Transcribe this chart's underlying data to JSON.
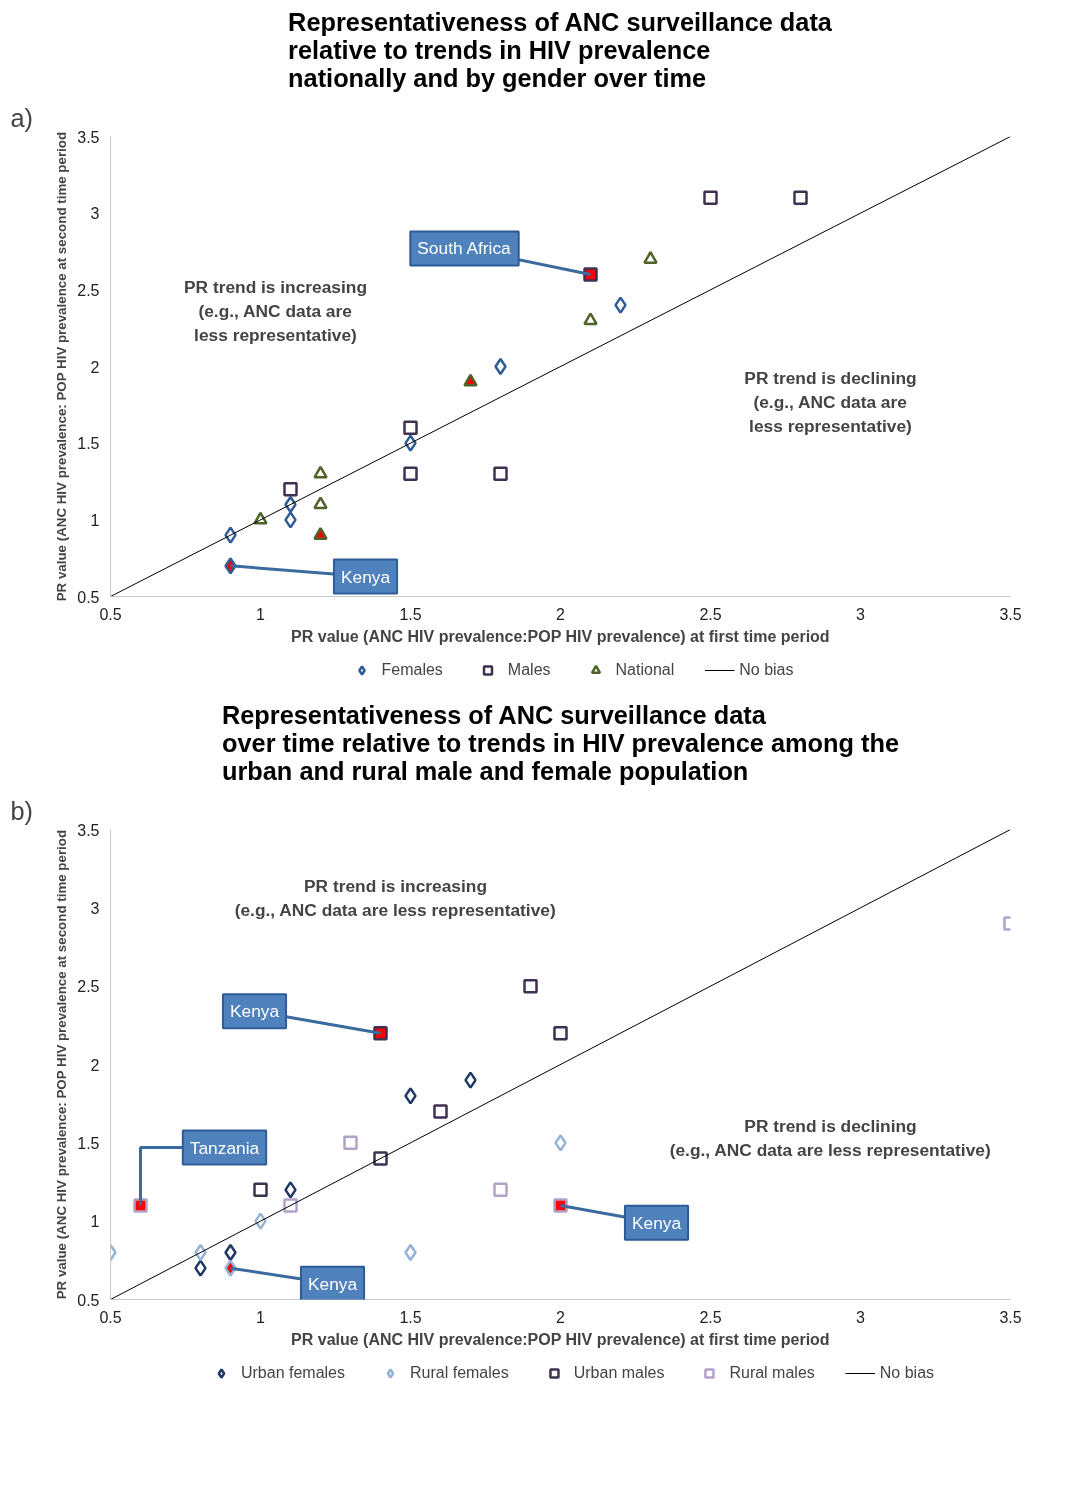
{
  "chart_data": [
    {
      "type": "scatter",
      "title": "Representativeness of ANC surveillance data\nrelative to trends in HIV prevalence\nnationally and by gender over time",
      "xlabel": "PR value (ANC HIV prevalence:POP HIV prevalence) at first time period",
      "ylabel": "PR value (ANC HIV prevalence: POP HIV prevalence at second time period",
      "xlim": [
        0.5,
        3.5
      ],
      "ylim": [
        0.5,
        3.5
      ],
      "xticks": [
        0.5,
        1,
        1.5,
        2,
        2.5,
        3,
        3.5
      ],
      "yticks": [
        0.5,
        1,
        1.5,
        2,
        2.5,
        3,
        3.5
      ],
      "grid": false,
      "legend": "bottom",
      "series": [
        {
          "name": "Females",
          "marker": "diamond",
          "color": "#2f5b96",
          "x": [
            0.9,
            1.1,
            1.1,
            1.5,
            1.8,
            2.2,
            0.9
          ],
          "values": [
            0.9,
            1.0,
            1.1,
            1.5,
            2.0,
            2.4,
            0.7
          ],
          "colors": [
            "#ffffff",
            "#ffffff",
            "#ffffff",
            "#ffffff",
            "#ffffff",
            "#ffffff",
            "#ff0000"
          ]
        },
        {
          "name": "Males",
          "marker": "square",
          "color": "#3f3151",
          "x": [
            2.5,
            2.8,
            1.1,
            1.5,
            1.5,
            1.8,
            2.1
          ],
          "values": [
            3.1,
            3.1,
            1.2,
            1.6,
            1.3,
            1.3,
            2.6
          ],
          "colors": [
            "#ffffff",
            "#ffffff",
            "#ffffff",
            "#ffffff",
            "#ffffff",
            "#ffffff",
            "#ff0000"
          ]
        },
        {
          "name": "National",
          "marker": "triangle",
          "color": "#4f6228",
          "x": [
            1.0,
            1.2,
            1.2,
            2.1,
            2.3,
            1.7,
            1.2
          ],
          "values": [
            1.0,
            1.3,
            1.1,
            2.3,
            2.7,
            1.9,
            0.9
          ],
          "colors": [
            "#ffffff",
            "#ffffff",
            "#ffffff",
            "#ffffff",
            "#ffffff",
            "#ff0000",
            "#ff0000"
          ]
        },
        {
          "name": "No bias",
          "type": "line",
          "color": "#000000",
          "x": [
            0.5,
            3.5
          ],
          "values": [
            0.5,
            3.5
          ]
        }
      ],
      "annotations": [
        "a)",
        "PR trend is increasing\n(e.g., ANC data are\nless representative)",
        "PR trend is declining\n(e.g., ANC data are\nless representative)",
        {
          "text": "South Africa",
          "x": 2.1,
          "y": 2.6
        },
        {
          "text": "Kenya",
          "x": 0.9,
          "y": 0.7
        }
      ]
    },
    {
      "type": "scatter",
      "title": "Representativeness of ANC surveillance data\nover time relative to trends in HIV prevalence among the\nurban and rural male and female population",
      "xlabel": "PR value (ANC HIV prevalence:POP HIV prevalence) at first time period",
      "ylabel": "PR value (ANC HIV prevalence: POP HIV prevalence at second time period",
      "xlim": [
        0.5,
        3.5
      ],
      "ylim": [
        0.5,
        3.5
      ],
      "xticks": [
        0.5,
        1,
        1.5,
        2,
        2.5,
        3,
        3.5
      ],
      "yticks": [
        0.5,
        1,
        1.5,
        2,
        2.5,
        3,
        3.5
      ],
      "grid": false,
      "legend": "bottom",
      "series": [
        {
          "name": "Urban females",
          "marker": "diamond",
          "color": "#1f3864",
          "x": [
            0.9,
            0.8,
            1.1,
            1.5,
            1.7
          ],
          "values": [
            0.8,
            0.7,
            1.2,
            1.8,
            1.9
          ]
        },
        {
          "name": "Rural females",
          "marker": "diamond",
          "color": "#95b3d7",
          "x": [
            0.5,
            0.8,
            1.0,
            1.5,
            2.0,
            0.9
          ],
          "values": [
            0.8,
            0.8,
            1.0,
            0.8,
            1.5,
            0.7
          ],
          "colors": [
            "#ffffff",
            "#ffffff",
            "#ffffff",
            "#ffffff",
            "#ffffff",
            "#ff0000"
          ]
        },
        {
          "name": "Urban males",
          "marker": "square",
          "color": "#3f3151",
          "x": [
            1.9,
            2.0,
            1.6,
            1.4,
            1.0,
            1.4
          ],
          "values": [
            2.5,
            2.2,
            1.7,
            1.4,
            1.2,
            2.2
          ],
          "colors": [
            "#ffffff",
            "#ffffff",
            "#ffffff",
            "#ffffff",
            "#ffffff",
            "#ff0000"
          ]
        },
        {
          "name": "Rural males",
          "marker": "square",
          "color": "#b3a2c7",
          "x": [
            3.5,
            1.3,
            1.8,
            1.1,
            0.6,
            2.0
          ],
          "values": [
            2.9,
            1.5,
            1.2,
            1.1,
            1.1,
            1.1
          ],
          "colors": [
            "#ffffff",
            "#ffffff",
            "#ffffff",
            "#ffffff",
            "#ff0000",
            "#ff0000"
          ]
        },
        {
          "name": "No bias",
          "type": "line",
          "color": "#000000",
          "x": [
            0.5,
            3.5
          ],
          "values": [
            0.5,
            3.5
          ]
        }
      ],
      "annotations": [
        "b)",
        "PR trend is increasing\n(e.g., ANC data are less representative)",
        "PR trend is declining\n(e.g., ANC data are less representative)",
        {
          "text": "Kenya",
          "x": 1.4,
          "y": 2.2
        },
        {
          "text": "Tanzania",
          "x": 0.6,
          "y": 1.1
        },
        {
          "text": "Kenya",
          "x": 2.0,
          "y": 1.1
        },
        {
          "text": "Kenya",
          "x": 0.9,
          "y": 0.7
        }
      ]
    }
  ]
}
